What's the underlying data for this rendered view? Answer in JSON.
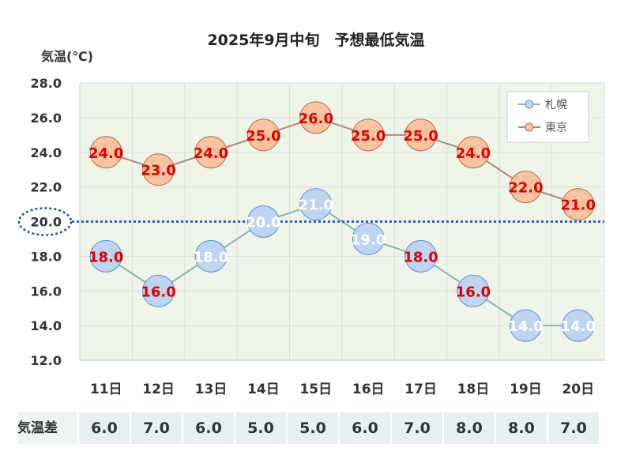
{
  "chart_data": {
    "type": "line",
    "title": "2025年9月中旬　予想最低気温",
    "ylabel": "気温(℃)",
    "xlabel": "",
    "categories": [
      "11日",
      "12日",
      "13日",
      "14日",
      "15日",
      "16日",
      "17日",
      "18日",
      "19日",
      "20日"
    ],
    "ylim": [
      12,
      28
    ],
    "yticks": [
      "12.0",
      "14.0",
      "16.0",
      "18.0",
      "20.0",
      "22.0",
      "24.0",
      "26.0",
      "28.0"
    ],
    "reference_line": 20,
    "grid": true,
    "legend_position": "top-right",
    "series": [
      {
        "name": "札幌",
        "values": [
          18,
          16,
          18,
          20,
          21,
          19,
          18,
          16,
          14,
          14
        ],
        "labels": [
          "18.0",
          "16.0",
          "18.0",
          "20.0",
          "21.0",
          "19.0",
          "18.0",
          "16.0",
          "14.0",
          "14.0"
        ],
        "fill": "#bdd5f0",
        "stroke": "#5b8fd4",
        "line": "#86b8b5",
        "label_colors": [
          "#e00000",
          "#e00000",
          "#ffffff",
          "#ffffff",
          "#ffffff",
          "#ffffff",
          "#e00000",
          "#e00000",
          "#ffffff",
          "#ffffff"
        ]
      },
      {
        "name": "東京",
        "values": [
          24,
          23,
          24,
          25,
          26,
          25,
          25,
          24,
          22,
          21
        ],
        "labels": [
          "24.0",
          "23.0",
          "24.0",
          "25.0",
          "26.0",
          "25.0",
          "25.0",
          "24.0",
          "22.0",
          "21.0"
        ],
        "fill": "#f8c39f",
        "stroke": "#b46a45",
        "line": "#b08585",
        "label_colors": [
          "#e00000",
          "#e00000",
          "#e00000",
          "#e00000",
          "#e00000",
          "#e00000",
          "#e00000",
          "#e00000",
          "#e00000",
          "#e00000"
        ]
      }
    ],
    "colors": {
      "plot_bg": "#eef5e8",
      "grid": "#d8dedb",
      "ref_line": "#3a5fb8"
    }
  },
  "difference_row": {
    "label": "気温差",
    "values": [
      "6.0",
      "7.0",
      "6.0",
      "5.0",
      "5.0",
      "6.0",
      "7.0",
      "8.0",
      "8.0",
      "7.0"
    ]
  }
}
